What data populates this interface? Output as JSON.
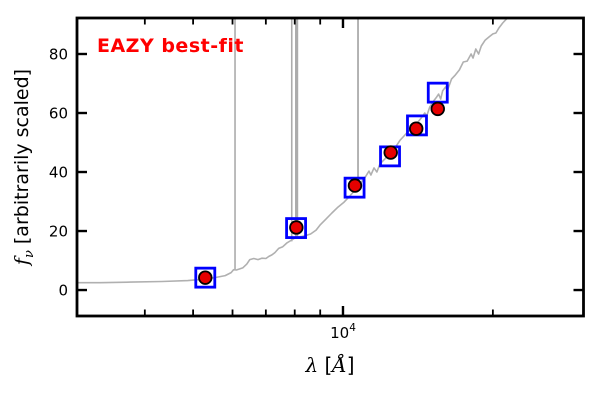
{
  "annotation": {
    "text": "EAZY best-fit",
    "color": "#ff0000"
  },
  "axes": {
    "x": {
      "label_lambda": "λ",
      "label_open": " [",
      "label_angstrom": "Å",
      "label_close": "]",
      "tick_label": {
        "base": "10",
        "exp": "4"
      }
    },
    "y": {
      "label_f": "f",
      "label_sub": "ν",
      "label_rest": " [arbitrarily scaled]",
      "tick_labels": [
        "0",
        "20",
        "40",
        "60",
        "80"
      ]
    }
  },
  "colors": {
    "spectrum": "#b0b0b0",
    "emission_line": "#ababab",
    "square": "#0000ff",
    "circle_fill": "#e60000",
    "circle_edge": "#000000",
    "frame": "#000000",
    "annotation": "#ff0000"
  },
  "chart_data": {
    "type": "line",
    "title": "EAZY best-fit",
    "xlabel": "λ [Å]",
    "ylabel": "f_ν [arbitrarily scaled]",
    "x_scale": "log",
    "xlim": [
      2923,
      30410
    ],
    "ylim": [
      -8.8,
      92.2
    ],
    "x_major_ticks": [
      10000
    ],
    "x_minor_ticks": [
      4000,
      5000,
      6000,
      7000,
      8000,
      9000,
      20000
    ],
    "y_major_ticks": [
      0,
      20,
      40,
      60,
      80
    ],
    "grid": false,
    "legend": false,
    "series": [
      {
        "name": "model-spectrum",
        "type": "line",
        "points": [
          [
            2920,
            2.5
          ],
          [
            3250,
            2.5
          ],
          [
            3750,
            2.7
          ],
          [
            4330,
            2.9
          ],
          [
            4880,
            3.2
          ],
          [
            5280,
            3.7
          ],
          [
            5530,
            4.2
          ],
          [
            5800,
            4.9
          ],
          [
            5960,
            5.9
          ],
          [
            6030,
            6.9
          ],
          [
            6110,
            6.8
          ],
          [
            6290,
            7.5
          ],
          [
            6410,
            8.8
          ],
          [
            6500,
            10.3
          ],
          [
            6620,
            10.7
          ],
          [
            6750,
            10.3
          ],
          [
            6870,
            10.8
          ],
          [
            7000,
            10.7
          ],
          [
            7100,
            11.4
          ],
          [
            7200,
            11.9
          ],
          [
            7300,
            12.7
          ],
          [
            7430,
            14.1
          ],
          [
            7570,
            14.7
          ],
          [
            7710,
            15.9
          ],
          [
            7860,
            16.8
          ],
          [
            8040,
            17.8
          ],
          [
            8230,
            18.1
          ],
          [
            8420,
            18.5
          ],
          [
            8610,
            19.0
          ],
          [
            8830,
            20.3
          ],
          [
            8990,
            22.0
          ],
          [
            9250,
            24.1
          ],
          [
            9500,
            26.1
          ],
          [
            9770,
            28.1
          ],
          [
            10050,
            29.8
          ],
          [
            10330,
            31.9
          ],
          [
            10570,
            33.9
          ],
          [
            10720,
            34.9
          ],
          [
            10920,
            36.9
          ],
          [
            11120,
            38.6
          ],
          [
            11280,
            40.3
          ],
          [
            11380,
            39.0
          ],
          [
            11540,
            41.4
          ],
          [
            11700,
            40.0
          ],
          [
            11860,
            42.7
          ],
          [
            12080,
            44.1
          ],
          [
            12300,
            45.4
          ],
          [
            12530,
            47.1
          ],
          [
            12790,
            48.8
          ],
          [
            13020,
            50.8
          ],
          [
            13260,
            52.2
          ],
          [
            13540,
            53.9
          ],
          [
            13800,
            54.9
          ],
          [
            14050,
            56.3
          ],
          [
            14310,
            58.0
          ],
          [
            14600,
            60.0
          ],
          [
            14730,
            59.0
          ],
          [
            14930,
            62.0
          ],
          [
            15210,
            64.1
          ],
          [
            15420,
            65.4
          ],
          [
            15560,
            66.4
          ],
          [
            15710,
            64.7
          ],
          [
            15850,
            67.5
          ],
          [
            16070,
            68.8
          ],
          [
            16220,
            67.8
          ],
          [
            16520,
            71.5
          ],
          [
            16820,
            72.9
          ],
          [
            17130,
            74.6
          ],
          [
            17440,
            77.3
          ],
          [
            17760,
            77.6
          ],
          [
            18080,
            80.0
          ],
          [
            18240,
            78.6
          ],
          [
            18480,
            81.7
          ],
          [
            18720,
            80.0
          ],
          [
            18960,
            82.7
          ],
          [
            19300,
            84.7
          ],
          [
            19650,
            85.8
          ],
          [
            20000,
            86.8
          ],
          [
            20280,
            87.1
          ],
          [
            20560,
            88.8
          ],
          [
            20930,
            90.5
          ],
          [
            21300,
            91.9
          ]
        ]
      },
      {
        "name": "emission-lines",
        "type": "vlines",
        "lines": [
          {
            "x": 6070,
            "v0": 7.0,
            "v1": 92.2,
            "width": 1.6
          },
          {
            "x": 7890,
            "v0": 16.5,
            "v1": 92.2,
            "width": 1.6
          },
          {
            "x": 8070,
            "v0": 17.8,
            "v1": 92.2,
            "width": 3.2
          },
          {
            "x": 10720,
            "v0": 35.0,
            "v1": 92.2,
            "width": 1.8
          }
        ]
      },
      {
        "name": "model-photometry",
        "type": "scatter-square",
        "points": [
          [
            5290,
            4.2
          ],
          [
            8050,
            21.0
          ],
          [
            10550,
            34.7
          ],
          [
            12430,
            45.3
          ],
          [
            14080,
            55.8
          ],
          [
            15500,
            66.9
          ]
        ]
      },
      {
        "name": "observed-photometry",
        "type": "scatter-circle",
        "points": [
          [
            5290,
            4.2
          ],
          [
            8060,
            21.2
          ],
          [
            10570,
            35.4
          ],
          [
            12470,
            46.6
          ],
          [
            14030,
            54.7
          ],
          [
            15500,
            61.4
          ]
        ]
      }
    ]
  }
}
